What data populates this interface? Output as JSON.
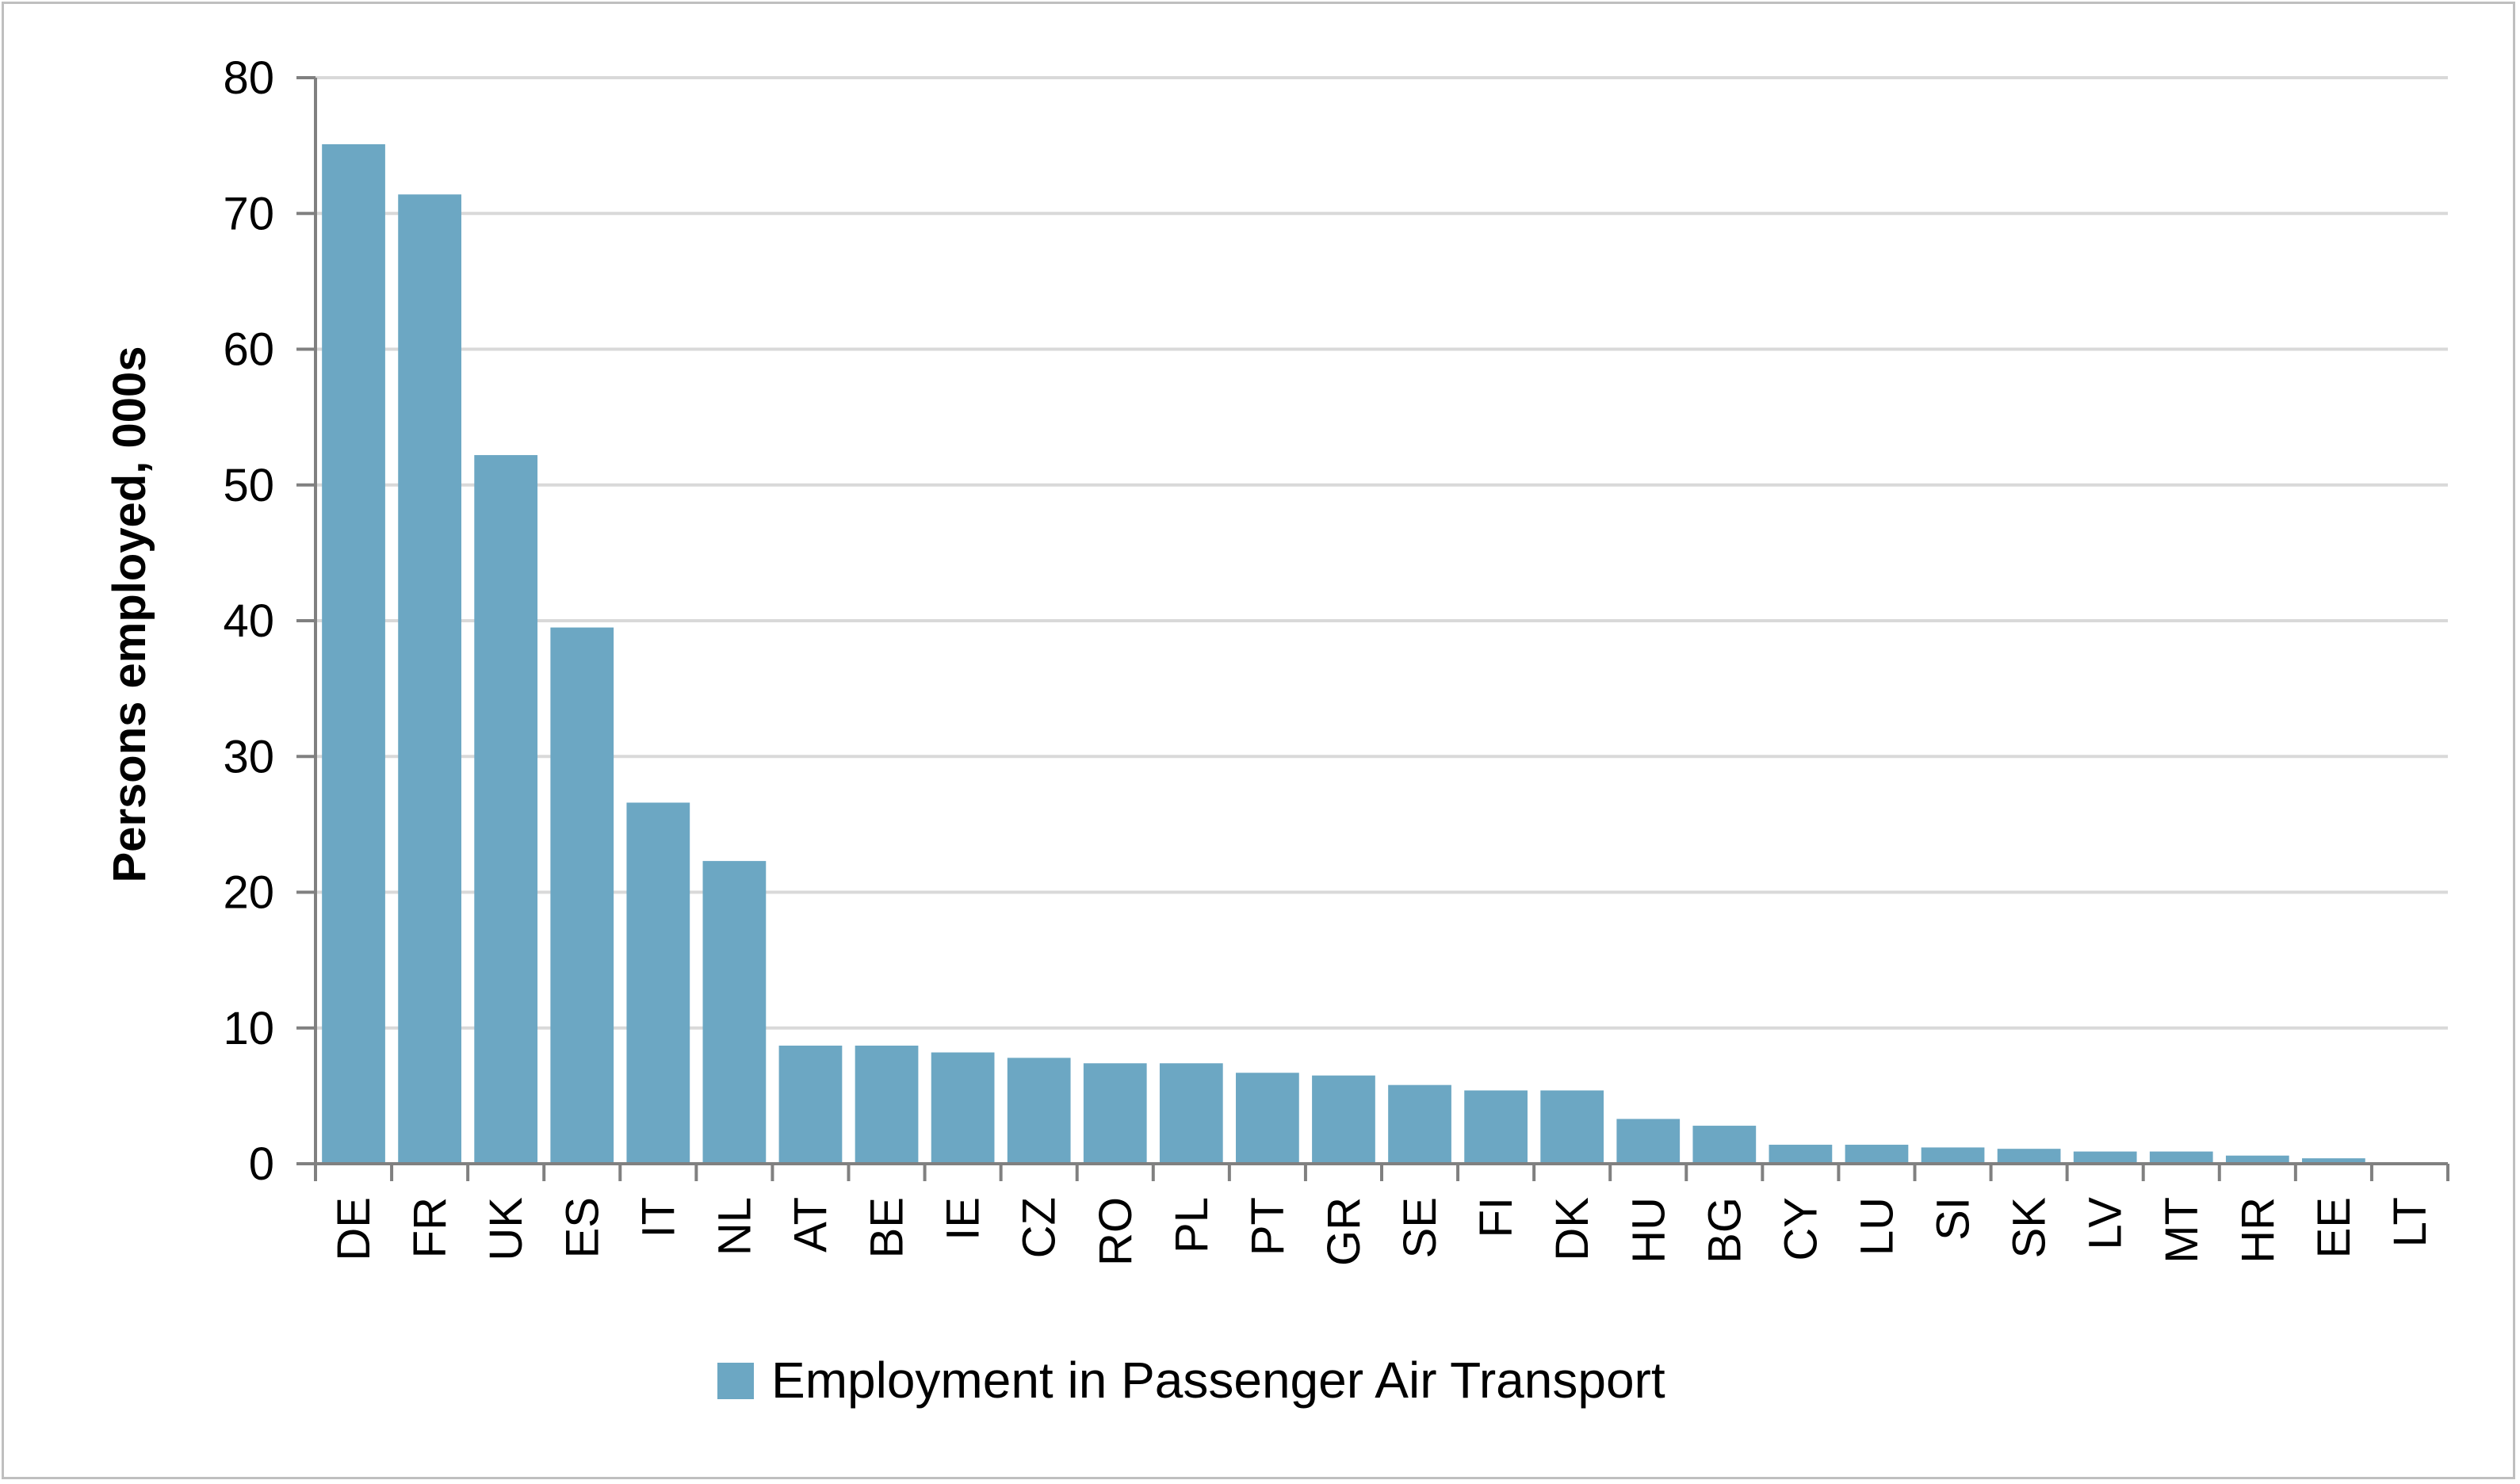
{
  "chart_data": {
    "type": "bar",
    "categories": [
      "DE",
      "FR",
      "UK",
      "ES",
      "IT",
      "NL",
      "AT",
      "BE",
      "IE",
      "CZ",
      "RO",
      "PL",
      "PT",
      "GR",
      "SE",
      "FI",
      "DK",
      "HU",
      "BG",
      "CY",
      "LU",
      "SI",
      "SK",
      "LV",
      "MT",
      "HR",
      "EE",
      "LT"
    ],
    "series": [
      {
        "name": "Employment in Passenger Air Transport",
        "values": [
          75.1,
          71.4,
          52.2,
          39.5,
          26.6,
          22.3,
          8.7,
          8.7,
          8.2,
          7.8,
          7.4,
          7.4,
          6.7,
          6.5,
          5.8,
          5.4,
          5.4,
          3.3,
          2.8,
          1.4,
          1.4,
          1.2,
          1.1,
          0.9,
          0.9,
          0.6,
          0.4,
          0.1
        ],
        "color": "#6ca7c3"
      }
    ],
    "title": "",
    "xlabel": "",
    "ylabel": "Persons employed, 000s",
    "ylim": [
      0,
      80
    ],
    "yticks": [
      0,
      10,
      20,
      30,
      40,
      50,
      60,
      70,
      80
    ],
    "grid": true,
    "legend_position": "bottom",
    "colors": {
      "grid": "#d9d9d9",
      "axis": "#808080",
      "frame": "#bfbfbf"
    }
  }
}
